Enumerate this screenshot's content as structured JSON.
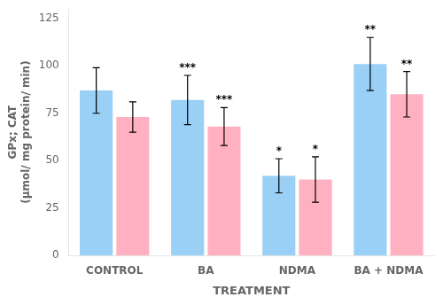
{
  "chart_data": {
    "type": "bar",
    "categories": [
      "CONTROL",
      "BA",
      "NDMA",
      "BA + NDMA"
    ],
    "series": [
      {
        "values": [
          87,
          82,
          42,
          101
        ],
        "errors": [
          12,
          13,
          9,
          14
        ],
        "significance": [
          null,
          "***",
          "*",
          "**"
        ]
      },
      {
        "values": [
          73,
          68,
          40,
          85
        ],
        "errors": [
          8,
          10,
          12,
          12
        ],
        "significance": [
          null,
          "***",
          "*",
          "**"
        ]
      }
    ],
    "xlabel": "TREATMENT",
    "ylabel": "GPx; CAT\n(μmol/ mg protein/ min)",
    "ylim": [
      0,
      130
    ],
    "yticks": [
      0,
      25,
      50,
      75,
      100,
      125
    ],
    "grid": false
  }
}
